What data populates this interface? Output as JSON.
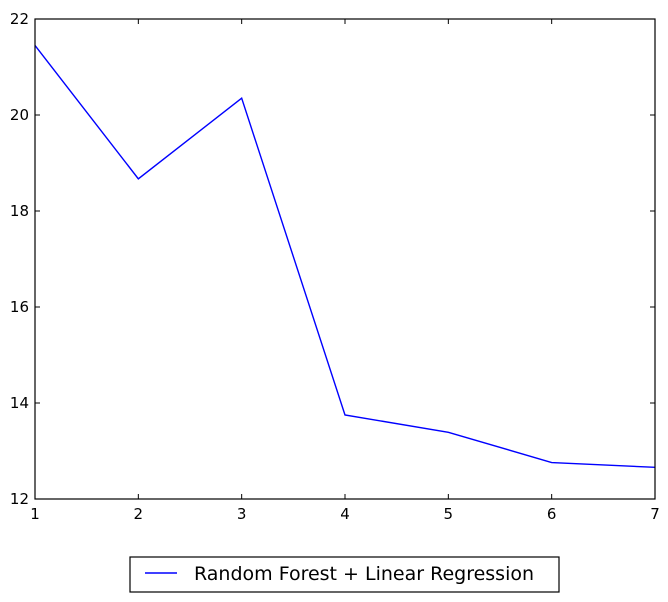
{
  "chart_data": {
    "type": "line",
    "title": "",
    "xlabel": "",
    "ylabel": "",
    "xlim": [
      1,
      7
    ],
    "ylim": [
      12,
      22
    ],
    "xticks": [
      "1",
      "2",
      "3",
      "4",
      "5",
      "6",
      "7"
    ],
    "yticks": [
      "12",
      "14",
      "16",
      "18",
      "20",
      "22"
    ],
    "grid": false,
    "legend_position": "below",
    "series": [
      {
        "name": "Random Forest + Linear Regression",
        "color": "#0000ff",
        "x": [
          1,
          2,
          3,
          4,
          5,
          6,
          7
        ],
        "y": [
          21.45,
          18.67,
          20.35,
          13.75,
          13.39,
          12.76,
          12.66
        ]
      }
    ]
  }
}
